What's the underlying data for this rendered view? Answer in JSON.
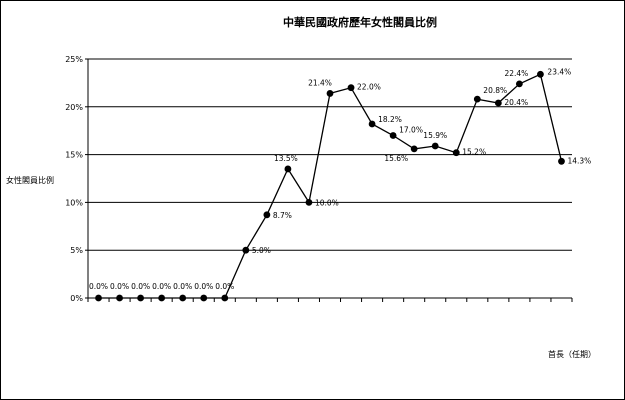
{
  "chart_data": {
    "type": "line",
    "title": "中華民國政府歷年女性閣員比例",
    "ylabel": "女性閣員比例",
    "xlabel": "首長（任期）",
    "ylim": [
      0,
      25
    ],
    "yticks": [
      "0%",
      "5%",
      "10%",
      "15%",
      "20%",
      "25%"
    ],
    "grid": true,
    "legend": "none",
    "series_color": "#000000",
    "series": [
      {
        "values": [
          0.0,
          0.0,
          0.0,
          0.0,
          0.0,
          0.0,
          0.0,
          5.0,
          8.7,
          13.5,
          10.0,
          21.4,
          22.0,
          18.2,
          17.0,
          15.6,
          15.9,
          15.2,
          20.8,
          20.4,
          22.4,
          23.4,
          14.3
        ],
        "labels": [
          "0.0%",
          "0.0%",
          "0.0%",
          "0.0%",
          "0.0%",
          "0.0%",
          "0.0%",
          "5.0%",
          "8.7%",
          "13.5%",
          "10.0%",
          "21.4%",
          "22.0%",
          "18.2%",
          "17.0%",
          "15.6%",
          "15.9%",
          "15.2%",
          "20.8%",
          "20.4%",
          "22.4%",
          "23.4%",
          "14.3%"
        ]
      }
    ]
  }
}
